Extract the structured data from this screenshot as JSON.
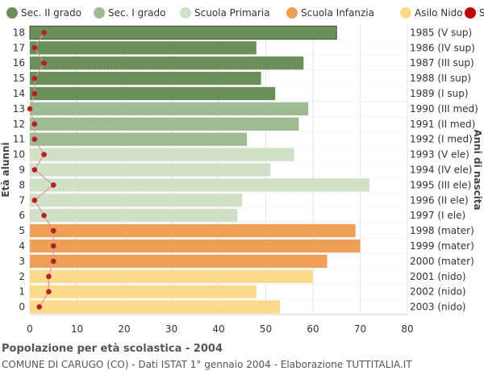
{
  "footer": {
    "title": "Popolazione per età scolastica - 2004",
    "subtitle": "COMUNE DI CARUGO (CO) - Dati ISTAT 1° gennaio 2004 - Elaborazione TUTTITALIA.IT"
  },
  "chart_data": {
    "type": "bar",
    "orientation": "horizontal",
    "ylabel_left": "Età alunni",
    "ylabel_right": "Anni di nascita",
    "xlim": [
      0,
      80
    ],
    "x_ticks": [
      0,
      10,
      20,
      30,
      40,
      50,
      60,
      70,
      80
    ],
    "grid": true,
    "legend_position": "top",
    "legend": [
      {
        "label": "Sec. II grado",
        "color": "#6b8e5a"
      },
      {
        "label": "Sec. I grado",
        "color": "#9fbb93"
      },
      {
        "label": "Scuola Primaria",
        "color": "#d3e0c8"
      },
      {
        "label": "Scuola Infanzia",
        "color": "#ee9f58"
      },
      {
        "label": "Asilo Nido",
        "color": "#fdd98c"
      },
      {
        "label": "Stranieri",
        "color": "#c00000"
      }
    ],
    "rows": [
      {
        "age": "18",
        "birth": "1985 (V sup)",
        "value": 65,
        "stranieri": 3,
        "group": 0
      },
      {
        "age": "17",
        "birth": "1986 (IV sup)",
        "value": 48,
        "stranieri": 1,
        "group": 0
      },
      {
        "age": "16",
        "birth": "1987 (III sup)",
        "value": 58,
        "stranieri": 3,
        "group": 0
      },
      {
        "age": "15",
        "birth": "1988 (II sup)",
        "value": 49,
        "stranieri": 1,
        "group": 0
      },
      {
        "age": "14",
        "birth": "1989 (I sup)",
        "value": 52,
        "stranieri": 1,
        "group": 0
      },
      {
        "age": "13",
        "birth": "1990 (III med)",
        "value": 59,
        "stranieri": 0,
        "group": 1
      },
      {
        "age": "12",
        "birth": "1991 (II med)",
        "value": 57,
        "stranieri": 1,
        "group": 1
      },
      {
        "age": "11",
        "birth": "1992 (I med)",
        "value": 46,
        "stranieri": 1,
        "group": 1
      },
      {
        "age": "10",
        "birth": "1993 (V ele)",
        "value": 56,
        "stranieri": 3,
        "group": 2
      },
      {
        "age": "9",
        "birth": "1994 (IV ele)",
        "value": 51,
        "stranieri": 1,
        "group": 2
      },
      {
        "age": "8",
        "birth": "1995 (III ele)",
        "value": 72,
        "stranieri": 5,
        "group": 2
      },
      {
        "age": "7",
        "birth": "1996 (II ele)",
        "value": 45,
        "stranieri": 1,
        "group": 2
      },
      {
        "age": "6",
        "birth": "1997 (I ele)",
        "value": 44,
        "stranieri": 3,
        "group": 2
      },
      {
        "age": "5",
        "birth": "1998 (mater)",
        "value": 69,
        "stranieri": 5,
        "group": 3
      },
      {
        "age": "4",
        "birth": "1999 (mater)",
        "value": 70,
        "stranieri": 5,
        "group": 3
      },
      {
        "age": "3",
        "birth": "2000 (mater)",
        "value": 63,
        "stranieri": 5,
        "group": 3
      },
      {
        "age": "2",
        "birth": "2001 (nido)",
        "value": 60,
        "stranieri": 4,
        "group": 4
      },
      {
        "age": "1",
        "birth": "2002 (nido)",
        "value": 48,
        "stranieri": 4,
        "group": 4
      },
      {
        "age": "0",
        "birth": "2003 (nido)",
        "value": 53,
        "stranieri": 2,
        "group": 4
      }
    ]
  }
}
